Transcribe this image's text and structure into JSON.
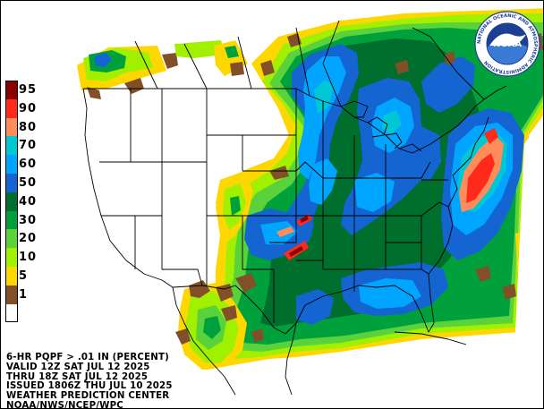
{
  "legend": {
    "items": [
      {
        "label": "95",
        "color": "#8b0000"
      },
      {
        "label": "90",
        "color": "#ff2a1a"
      },
      {
        "label": "80",
        "color": "#ff8c5a"
      },
      {
        "label": "70",
        "color": "#00c8d2"
      },
      {
        "label": "60",
        "color": "#00a5ff"
      },
      {
        "label": "50",
        "color": "#1464d2"
      },
      {
        "label": "40",
        "color": "#006e2d"
      },
      {
        "label": "30",
        "color": "#00a03c"
      },
      {
        "label": "20",
        "color": "#5ad23c"
      },
      {
        "label": "10",
        "color": "#a0f000"
      },
      {
        "label": "5",
        "color": "#ffd700"
      },
      {
        "label": "1",
        "color": "#825028"
      },
      {
        "label": "",
        "color": "#ffffff"
      }
    ]
  },
  "info": {
    "line1": "6-HR PQPF > .01 IN (PERCENT)",
    "line2": "VALID 12Z SAT JUL 12 2025",
    "line3": "THRU 18Z SAT JUL 12 2025",
    "line4": "ISSUED 1806Z THU JUL 10 2025",
    "line5": "WEATHER PREDICTION CENTER",
    "line6": "NOAA/NWS/NCEP/WPC"
  },
  "logo": {
    "text": "NOAA",
    "ring_text": "NATIONAL OCEANIC AND ATMOSPHERIC ADMINISTRATION",
    "colors": {
      "ring": "#ffffff",
      "sky": "#1c3f94",
      "sea": "#3a7bd5",
      "gull": "#ffffff"
    }
  },
  "map_colors": {
    "brown": "#825028",
    "yellow": "#ffd700",
    "lime": "#a0f000",
    "lightgreen": "#5ad23c",
    "green": "#00a03c",
    "darkgreen": "#006e2d",
    "blue": "#1464d2",
    "skyblue": "#00a5ff",
    "cyan": "#00c8d2",
    "salmon": "#ff8c5a",
    "red": "#ff2a1a",
    "darkred": "#8b0000"
  }
}
